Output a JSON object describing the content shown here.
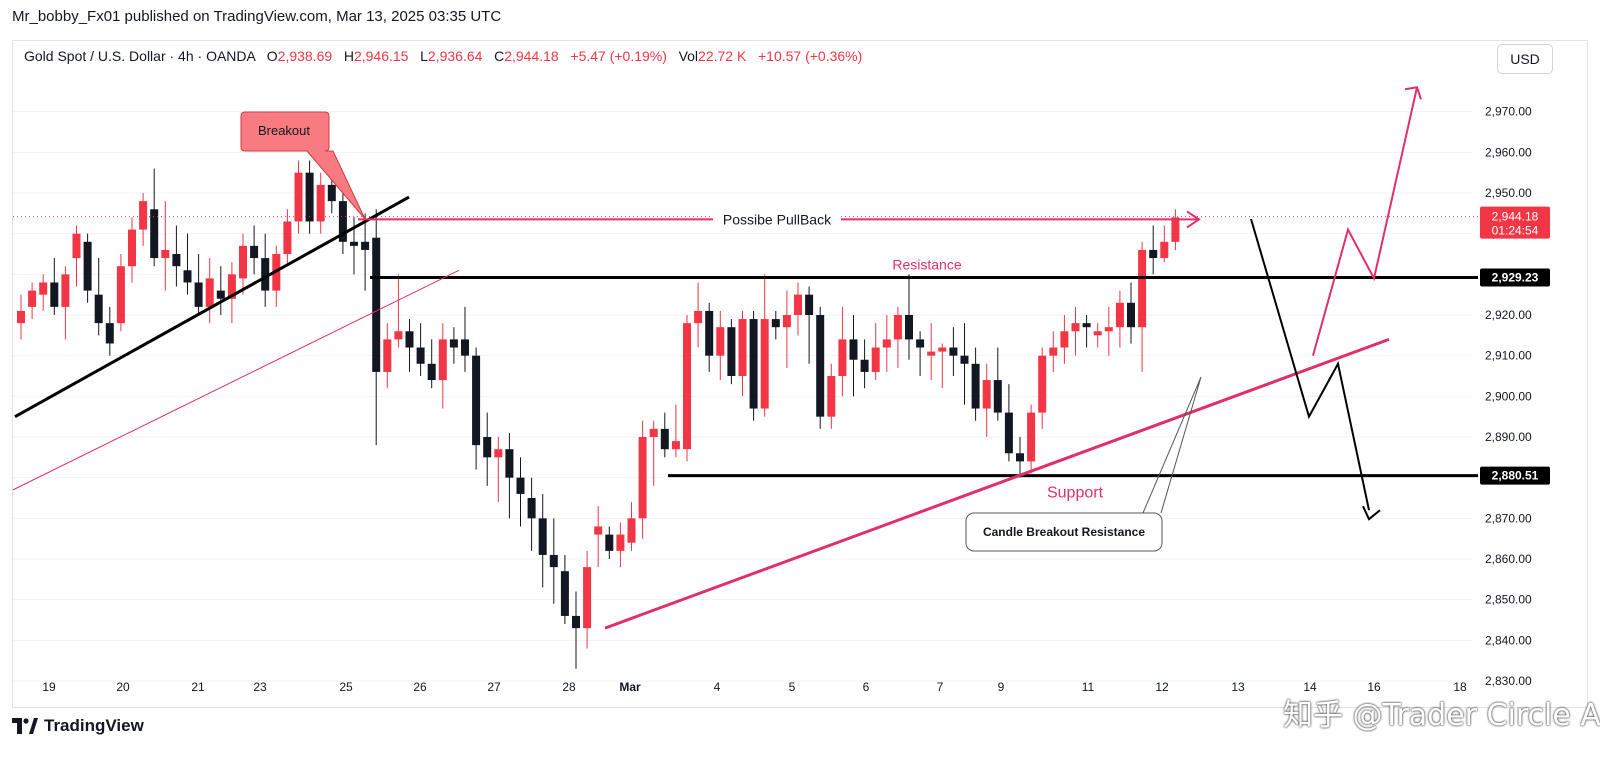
{
  "header": {
    "publisher_line": "Mr_bobby_Fx01 published on TradingView.com, Mar 13, 2025 03:35 UTC"
  },
  "ohlc": {
    "symbol": "Gold Spot / U.S. Dollar · 4h · OANDA",
    "o_label": "O",
    "o": "2,938.69",
    "h_label": "H",
    "h": "2,946.15",
    "l_label": "L",
    "l": "2,936.64",
    "c_label": "C",
    "c": "2,944.18",
    "change": "+5.47 (+0.19%)",
    "vol_label": "Vol",
    "vol": "22.72 K",
    "vol_change": "+10.57 (+0.36%)"
  },
  "currency_button": "USD",
  "footer": {
    "logo_text": "TradingView"
  },
  "watermark": "知乎 @Trader Circle Admin",
  "colors": {
    "up": "#f23645",
    "down": "#131722",
    "annotation": "#e0306a",
    "grid": "#f0f3fa"
  },
  "chart_data": {
    "type": "candlestick",
    "ylim": [
      2830,
      2980
    ],
    "x_ticks": [
      "19",
      "20",
      "21",
      "23",
      "25",
      "26",
      "27",
      "28",
      "Mar",
      "4",
      "5",
      "6",
      "7",
      "9",
      "11",
      "12",
      "13",
      "14",
      "16",
      "18"
    ],
    "y_ticks": [
      "2,830.00",
      "2,840.00",
      "2,850.00",
      "2,860.00",
      "2,870.00",
      "2,880.00",
      "2,890.00",
      "2,900.00",
      "2,910.00",
      "2,920.00",
      "2,930.00",
      "2,940.00",
      "2,950.00",
      "2,960.00",
      "2,970.00"
    ],
    "price_labels": [
      {
        "value": 2944.18,
        "text": "2,944.18",
        "sub": "01:24:54",
        "style": "current"
      },
      {
        "value": 2929.23,
        "text": "2,929.23",
        "style": "level"
      },
      {
        "value": 2880.51,
        "text": "2,880.51",
        "style": "level"
      }
    ],
    "candles": [
      [
        2918,
        2925,
        2914,
        2921
      ],
      [
        2922,
        2928,
        2919,
        2926
      ],
      [
        2925,
        2930,
        2921,
        2928
      ],
      [
        2928,
        2934,
        2920,
        2922
      ],
      [
        2922,
        2932,
        2914,
        2930
      ],
      [
        2934,
        2942,
        2927,
        2940
      ],
      [
        2938,
        2940,
        2923,
        2926
      ],
      [
        2925,
        2934,
        2915,
        2918
      ],
      [
        2918,
        2922,
        2910,
        2913
      ],
      [
        2918,
        2935,
        2916,
        2932
      ],
      [
        2932,
        2944,
        2928,
        2941
      ],
      [
        2941,
        2950,
        2937,
        2948
      ],
      [
        2946,
        2956,
        2932,
        2934
      ],
      [
        2934,
        2948,
        2926,
        2936
      ],
      [
        2935,
        2942,
        2927,
        2932
      ],
      [
        2931,
        2940,
        2925,
        2928
      ],
      [
        2928,
        2935,
        2920,
        2922
      ],
      [
        2922,
        2934,
        2918,
        2929
      ],
      [
        2926,
        2932,
        2920,
        2924
      ],
      [
        2924,
        2933,
        2918,
        2930
      ],
      [
        2929,
        2940,
        2925,
        2937
      ],
      [
        2937,
        2942,
        2930,
        2934
      ],
      [
        2934,
        2940,
        2922,
        2926
      ],
      [
        2926,
        2937,
        2922,
        2935
      ],
      [
        2935,
        2946,
        2932,
        2943
      ],
      [
        2943,
        2958,
        2940,
        2955
      ],
      [
        2955,
        2958,
        2940,
        2943
      ],
      [
        2943,
        2955,
        2940,
        2952
      ],
      [
        2952,
        2955,
        2945,
        2948
      ],
      [
        2948,
        2952,
        2935,
        2938
      ],
      [
        2938,
        2944,
        2930,
        2937
      ],
      [
        2938,
        2945,
        2926,
        2936
      ],
      [
        2939,
        2946,
        2888,
        2906
      ],
      [
        2906,
        2918,
        2902,
        2914
      ],
      [
        2914,
        2930,
        2912,
        2916
      ],
      [
        2916,
        2919,
        2906,
        2912
      ],
      [
        2912,
        2918,
        2905,
        2908
      ],
      [
        2908,
        2914,
        2902,
        2904
      ],
      [
        2904,
        2918,
        2897,
        2914
      ],
      [
        2914,
        2917,
        2908,
        2912
      ],
      [
        2914,
        2922,
        2906,
        2910
      ],
      [
        2910,
        2912,
        2882,
        2888
      ],
      [
        2890,
        2896,
        2878,
        2885
      ],
      [
        2885,
        2890,
        2874,
        2887
      ],
      [
        2887,
        2891,
        2870,
        2880
      ],
      [
        2880,
        2885,
        2868,
        2876
      ],
      [
        2875,
        2880,
        2862,
        2870
      ],
      [
        2870,
        2876,
        2853,
        2861
      ],
      [
        2861,
        2870,
        2849,
        2858
      ],
      [
        2857,
        2861,
        2844,
        2846
      ],
      [
        2846,
        2852,
        2833,
        2843
      ],
      [
        2843,
        2862,
        2838,
        2858
      ],
      [
        2866,
        2873,
        2858,
        2868
      ],
      [
        2866,
        2868,
        2860,
        2862
      ],
      [
        2862,
        2869,
        2858,
        2866
      ],
      [
        2864,
        2874,
        2862,
        2870
      ],
      [
        2870,
        2894,
        2865,
        2890
      ],
      [
        2890,
        2894,
        2878,
        2892
      ],
      [
        2892,
        2896,
        2885,
        2887
      ],
      [
        2887,
        2898,
        2885,
        2889
      ],
      [
        2887,
        2920,
        2884,
        2918
      ],
      [
        2918,
        2928,
        2912,
        2921
      ],
      [
        2921,
        2923,
        2906,
        2910
      ],
      [
        2910,
        2921,
        2904,
        2917
      ],
      [
        2917,
        2919,
        2903,
        2905
      ],
      [
        2905,
        2921,
        2900,
        2919
      ],
      [
        2919,
        2921,
        2894,
        2897
      ],
      [
        2897,
        2930,
        2895,
        2919
      ],
      [
        2919,
        2921,
        2914,
        2917
      ],
      [
        2917,
        2926,
        2907,
        2920
      ],
      [
        2920,
        2928,
        2915,
        2925
      ],
      [
        2925,
        2927,
        2908,
        2920
      ],
      [
        2920,
        2922,
        2892,
        2895
      ],
      [
        2895,
        2908,
        2892,
        2905
      ],
      [
        2905,
        2922,
        2900,
        2914
      ],
      [
        2914,
        2920,
        2900,
        2909
      ],
      [
        2909,
        2914,
        2902,
        2906
      ],
      [
        2906,
        2918,
        2904,
        2912
      ],
      [
        2912,
        2920,
        2906,
        2914
      ],
      [
        2914,
        2922,
        2907,
        2920
      ],
      [
        2920,
        2930,
        2909,
        2914
      ],
      [
        2914,
        2916,
        2905,
        2912
      ],
      [
        2910,
        2918,
        2904,
        2911
      ],
      [
        2911,
        2913,
        2902,
        2912
      ],
      [
        2912,
        2917,
        2905,
        2910
      ],
      [
        2910,
        2918,
        2898,
        2908
      ],
      [
        2908,
        2912,
        2894,
        2897
      ],
      [
        2897,
        2908,
        2890,
        2904
      ],
      [
        2904,
        2912,
        2894,
        2896
      ],
      [
        2896,
        2903,
        2884,
        2886
      ],
      [
        2886,
        2890,
        2880,
        2884
      ],
      [
        2884,
        2898,
        2881,
        2896
      ],
      [
        2896,
        2912,
        2892,
        2910
      ],
      [
        2910,
        2916,
        2906,
        2912
      ],
      [
        2912,
        2920,
        2908,
        2916
      ],
      [
        2916,
        2922,
        2910,
        2918
      ],
      [
        2918,
        2920,
        2912,
        2917
      ],
      [
        2915,
        2918,
        2912,
        2916
      ],
      [
        2916,
        2922,
        2910,
        2917
      ],
      [
        2917,
        2926,
        2912,
        2923
      ],
      [
        2923,
        2928,
        2913,
        2917
      ],
      [
        2917,
        2938,
        2906,
        2936
      ],
      [
        2936,
        2942,
        2930,
        2934
      ],
      [
        2934,
        2942,
        2933,
        2938
      ],
      [
        2938,
        2946,
        2936,
        2944
      ]
    ]
  },
  "annotations": {
    "breakout": "Breakout",
    "pullback": "Possibe PullBack",
    "resistance": "Resistance",
    "support": "Support",
    "candle_breakout": "Candle Breakout Resistance"
  }
}
